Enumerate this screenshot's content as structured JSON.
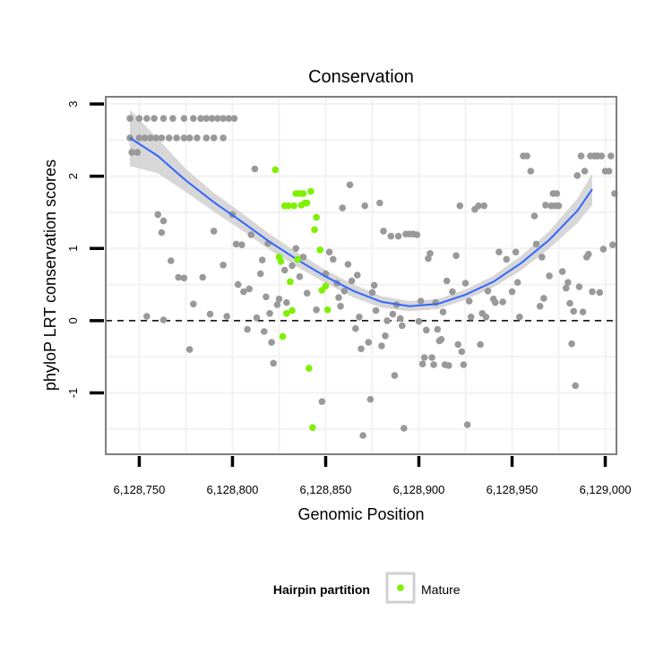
{
  "chart_data": {
    "type": "scatter",
    "title": "Conservation",
    "xlabel": "Genomic Position",
    "ylabel": "phyloP LRT conservation scores",
    "xlim": [
      6128732,
      6129006
    ],
    "ylim": [
      -1.85,
      3.1
    ],
    "x_ticks": [
      6128750,
      6128800,
      6128850,
      6128900,
      6128950,
      6129000
    ],
    "x_tick_labels": [
      "6,128,750",
      "6,128,800",
      "6,128,850",
      "6,128,900",
      "6,128,950",
      "6,129,000"
    ],
    "y_ticks": [
      -1,
      0,
      1,
      2,
      3
    ],
    "y_tick_labels": [
      "-1",
      "0",
      "1",
      "2",
      "3"
    ],
    "reference_line": {
      "y": 0,
      "style": "dashed",
      "color": "#000000"
    },
    "legend": {
      "title": "Hairpin partition",
      "entries": [
        {
          "label": "Mature",
          "color": "#7ef000"
        }
      ],
      "placement": "bottom"
    },
    "colors": {
      "background_points": "#999999",
      "mature_points": "#7ef000",
      "smooth_line": "#3366ff",
      "confidence_band": "#d0d0d0",
      "grid": "#f2f2f2",
      "panel_border": "#7f7f7f"
    },
    "smooth": {
      "x": [
        6128745,
        6128760,
        6128775,
        6128790,
        6128805,
        6128820,
        6128835,
        6128850,
        6128865,
        6128880,
        6128895,
        6128910,
        6128925,
        6128940,
        6128955,
        6128970,
        6128985,
        6128993
      ],
      "y": [
        2.53,
        2.28,
        1.94,
        1.64,
        1.37,
        1.09,
        0.84,
        0.61,
        0.41,
        0.26,
        0.2,
        0.23,
        0.36,
        0.54,
        0.8,
        1.12,
        1.52,
        1.82
      ],
      "lower": [
        2.14,
        2.04,
        1.78,
        1.51,
        1.25,
        0.98,
        0.74,
        0.52,
        0.32,
        0.18,
        0.13,
        0.16,
        0.29,
        0.46,
        0.7,
        1.0,
        1.35,
        1.6
      ],
      "upper": [
        2.92,
        2.52,
        2.1,
        1.77,
        1.49,
        1.2,
        0.94,
        0.7,
        0.5,
        0.34,
        0.27,
        0.3,
        0.43,
        0.62,
        0.9,
        1.24,
        1.69,
        2.04
      ]
    },
    "series": [
      {
        "name": "Other",
        "color": "#999999",
        "points": [
          [
            6128745,
            2.8
          ],
          [
            6128750,
            2.8
          ],
          [
            6128754,
            2.8
          ],
          [
            6128758,
            2.8
          ],
          [
            6128763,
            2.8
          ],
          [
            6128768,
            2.8
          ],
          [
            6128774,
            2.8
          ],
          [
            6128779,
            2.8
          ],
          [
            6128783,
            2.8
          ],
          [
            6128786,
            2.8
          ],
          [
            6128789,
            2.8
          ],
          [
            6128792,
            2.8
          ],
          [
            6128795,
            2.8
          ],
          [
            6128798,
            2.8
          ],
          [
            6128801,
            2.8
          ],
          [
            6128745,
            2.53
          ],
          [
            6128750,
            2.53
          ],
          [
            6128753,
            2.53
          ],
          [
            6128756,
            2.53
          ],
          [
            6128759,
            2.53
          ],
          [
            6128762,
            2.53
          ],
          [
            6128766,
            2.53
          ],
          [
            6128770,
            2.53
          ],
          [
            6128774,
            2.53
          ],
          [
            6128777,
            2.53
          ],
          [
            6128781,
            2.53
          ],
          [
            6128786,
            2.53
          ],
          [
            6128790,
            2.53
          ],
          [
            6128795,
            2.53
          ],
          [
            6128746,
            2.33
          ],
          [
            6128749,
            2.33
          ],
          [
            6128760,
            1.47
          ],
          [
            6128763,
            1.38
          ],
          [
            6128762,
            1.22
          ],
          [
            6128767,
            0.83
          ],
          [
            6128771,
            0.6
          ],
          [
            6128774,
            0.59
          ],
          [
            6128779,
            0.23
          ],
          [
            6128777,
            -0.4
          ],
          [
            6128784,
            0.6
          ],
          [
            6128788,
            0.09
          ],
          [
            6128790,
            1.24
          ],
          [
            6128795,
            0.77
          ],
          [
            6128797,
            0.06
          ],
          [
            6128754,
            0.06
          ],
          [
            6128763,
            0.01
          ],
          [
            6128800,
            1.47
          ],
          [
            6128802,
            1.06
          ],
          [
            6128803,
            0.5
          ],
          [
            6128805,
            1.05
          ],
          [
            6128806,
            0.4
          ],
          [
            6128808,
            -0.12
          ],
          [
            6128809,
            0.44
          ],
          [
            6128810,
            1.19
          ],
          [
            6128812,
            2.1
          ],
          [
            6128813,
            0.04
          ],
          [
            6128815,
            0.65
          ],
          [
            6128816,
            0.84
          ],
          [
            6128817,
            -0.15
          ],
          [
            6128818,
            0.33
          ],
          [
            6128819,
            1.07
          ],
          [
            6128820,
            0.1
          ],
          [
            6128821,
            -0.3
          ],
          [
            6128822,
            -0.59
          ],
          [
            6128824,
            0.22
          ],
          [
            6128825,
            0.3
          ],
          [
            6128828,
            0.7
          ],
          [
            6128829,
            0.25
          ],
          [
            6128832,
            0.76
          ],
          [
            6128834,
            1.0
          ],
          [
            6128836,
            0.61
          ],
          [
            6128838,
            0.88
          ],
          [
            6128840,
            0.38
          ],
          [
            6128845,
            0.15
          ],
          [
            6128848,
            -1.12
          ],
          [
            6128850,
            0.65
          ],
          [
            6128852,
            0.95
          ],
          [
            6128854,
            0.85
          ],
          [
            6128856,
            0.52
          ],
          [
            6128857,
            0.32
          ],
          [
            6128858,
            0.2
          ],
          [
            6128859,
            1.56
          ],
          [
            6128860,
            0.41
          ],
          [
            6128862,
            0.78
          ],
          [
            6128863,
            1.88
          ],
          [
            6128864,
            0.55
          ],
          [
            6128866,
            -0.11
          ],
          [
            6128867,
            0.63
          ],
          [
            6128868,
            0.05
          ],
          [
            6128869,
            -0.39
          ],
          [
            6128870,
            -1.59
          ],
          [
            6128871,
            1.59
          ],
          [
            6128873,
            -0.3
          ],
          [
            6128874,
            -1.09
          ],
          [
            6128875,
            0.39
          ],
          [
            6128876,
            0.49
          ],
          [
            6128877,
            0.14
          ],
          [
            6128879,
            1.63
          ],
          [
            6128880,
            -0.35
          ],
          [
            6128881,
            1.24
          ],
          [
            6128882,
            -0.21
          ],
          [
            6128883,
            0.0
          ],
          [
            6128885,
            1.17
          ],
          [
            6128886,
            0.09
          ],
          [
            6128887,
            -0.76
          ],
          [
            6128888,
            0.22
          ],
          [
            6128889,
            1.17
          ],
          [
            6128890,
            0.03
          ],
          [
            6128891,
            -0.07
          ],
          [
            6128892,
            -1.49
          ],
          [
            6128893,
            1.2
          ],
          [
            6128895,
            1.2
          ],
          [
            6128897,
            1.2
          ],
          [
            6128899,
            1.19
          ],
          [
            6128900,
            -0.01
          ],
          [
            6128901,
            0.27
          ],
          [
            6128902,
            -0.6
          ],
          [
            6128903,
            -0.51
          ],
          [
            6128904,
            -0.13
          ],
          [
            6128905,
            0.86
          ],
          [
            6128906,
            0.93
          ],
          [
            6128907,
            -0.51
          ],
          [
            6128908,
            -0.61
          ],
          [
            6128909,
            0.25
          ],
          [
            6128910,
            -0.12
          ],
          [
            6128911,
            -0.28
          ],
          [
            6128912,
            -0.26
          ],
          [
            6128913,
            0.12
          ],
          [
            6128914,
            -0.61
          ],
          [
            6128915,
            0.55
          ],
          [
            6128916,
            -0.62
          ],
          [
            6128918,
            0.4
          ],
          [
            6128920,
            0.9
          ],
          [
            6128921,
            -0.33
          ],
          [
            6128922,
            1.59
          ],
          [
            6128923,
            -0.43
          ],
          [
            6128924,
            -0.61
          ],
          [
            6128925,
            0.52
          ],
          [
            6128926,
            -1.44
          ],
          [
            6128927,
            0.27
          ],
          [
            6128928,
            0.05
          ],
          [
            6128930,
            1.54
          ],
          [
            6128932,
            1.59
          ],
          [
            6128933,
            -0.33
          ],
          [
            6128934,
            0.1
          ],
          [
            6128935,
            1.59
          ],
          [
            6128936,
            0.05
          ],
          [
            6128937,
            0.41
          ],
          [
            6128940,
            0.3
          ],
          [
            6128941,
            0.25
          ],
          [
            6128943,
            0.95
          ],
          [
            6128945,
            0.26
          ],
          [
            6128947,
            0.85
          ],
          [
            6128950,
            0.4
          ],
          [
            6128952,
            0.95
          ],
          [
            6128953,
            0.53
          ],
          [
            6128954,
            0.05
          ],
          [
            6128956,
            2.28
          ],
          [
            6128958,
            2.28
          ],
          [
            6128960,
            2.07
          ],
          [
            6128962,
            1.45
          ],
          [
            6128963,
            1.06
          ],
          [
            6128965,
            0.2
          ],
          [
            6128966,
            0.88
          ],
          [
            6128967,
            0.31
          ],
          [
            6128968,
            1.6
          ],
          [
            6128970,
            0.62
          ],
          [
            6128971,
            1.59
          ],
          [
            6128972,
            1.76
          ],
          [
            6128973,
            1.59
          ],
          [
            6128974,
            1.76
          ],
          [
            6128975,
            1.59
          ],
          [
            6128977,
            0.68
          ],
          [
            6128979,
            0.45
          ],
          [
            6128980,
            0.53
          ],
          [
            6128981,
            0.24
          ],
          [
            6128982,
            -0.32
          ],
          [
            6128983,
            0.13
          ],
          [
            6128984,
            -0.9
          ],
          [
            6128985,
            2.01
          ],
          [
            6128986,
            0.47
          ],
          [
            6128987,
            2.28
          ],
          [
            6128988,
            0.12
          ],
          [
            6128989,
            2.07
          ],
          [
            6128990,
            0.88
          ],
          [
            6128991,
            0.92
          ],
          [
            6128992,
            2.28
          ],
          [
            6128993,
            0.4
          ],
          [
            6128994,
            2.28
          ],
          [
            6128995,
            2.28
          ],
          [
            6128996,
            2.28
          ],
          [
            6128997,
            0.39
          ],
          [
            6128998,
            2.28
          ],
          [
            6128999,
            0.99
          ],
          [
            6129000,
            2.07
          ],
          [
            6129002,
            2.07
          ],
          [
            6129003,
            2.28
          ],
          [
            6129004,
            1.05
          ],
          [
            6129005,
            1.76
          ]
        ]
      },
      {
        "name": "Mature",
        "color": "#7ef000",
        "points": [
          [
            6128823,
            2.09
          ],
          [
            6128825,
            0.88
          ],
          [
            6128826,
            0.82
          ],
          [
            6128827,
            -0.22
          ],
          [
            6128828,
            1.59
          ],
          [
            6128829,
            0.1
          ],
          [
            6128830,
            1.59
          ],
          [
            6128831,
            0.54
          ],
          [
            6128832,
            0.14
          ],
          [
            6128833,
            1.59
          ],
          [
            6128834,
            1.76
          ],
          [
            6128835,
            0.85
          ],
          [
            6128836,
            1.76
          ],
          [
            6128837,
            1.6
          ],
          [
            6128838,
            1.76
          ],
          [
            6128839,
            1.63
          ],
          [
            6128840,
            1.63
          ],
          [
            6128841,
            -0.66
          ],
          [
            6128842,
            1.79
          ],
          [
            6128843,
            -1.48
          ],
          [
            6128844,
            1.26
          ],
          [
            6128845,
            1.43
          ],
          [
            6128847,
            0.98
          ],
          [
            6128848,
            0.42
          ],
          [
            6128850,
            0.48
          ],
          [
            6128851,
            0.15
          ]
        ]
      }
    ]
  }
}
